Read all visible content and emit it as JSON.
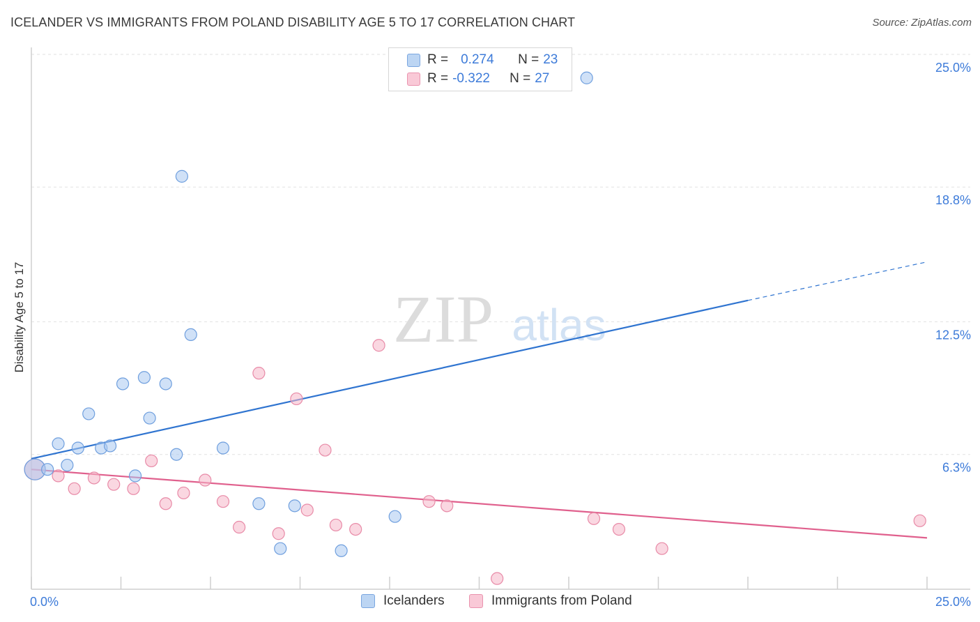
{
  "title": "ICELANDER VS IMMIGRANTS FROM POLAND DISABILITY AGE 5 TO 17 CORRELATION CHART",
  "source": "Source: ZipAtlas.com",
  "watermark": {
    "zip": "ZIP",
    "atlas": "atlas"
  },
  "legend": {
    "r_label": "R =",
    "n_label": "N =",
    "rows": [
      {
        "r": "0.274",
        "n": "23",
        "color": "#a9c8f0"
      },
      {
        "r": "-0.322",
        "n": "27",
        "color": "#f5b7c9"
      }
    ]
  },
  "chart_data": {
    "type": "scatter",
    "title": "ICELANDER VS IMMIGRANTS FROM POLAND DISABILITY AGE 5 TO 17 CORRELATION CHART",
    "xlabel": "",
    "ylabel": "Disability Age 5 to 17",
    "xlim": [
      0,
      25
    ],
    "ylim": [
      0,
      25.0
    ],
    "x_tick_labels": [
      "0.0%",
      "25.0%"
    ],
    "y_ticks": [
      6.3,
      12.5,
      18.8,
      25.0
    ],
    "y_tick_labels": [
      "6.3%",
      "12.5%",
      "18.8%",
      "25.0%"
    ],
    "grid": true,
    "series": [
      {
        "name": "Icelanders",
        "color": "#a9c8f0",
        "stroke": "#6f9fde",
        "line_color": "#2f74d0",
        "trend": {
          "x0": 0,
          "y0": 6.1,
          "x1": 20,
          "y1": 13.5,
          "dashed_to_x": 25,
          "dashed_to_y": 15.3
        },
        "points": [
          [
            0.1,
            5.6
          ],
          [
            0.45,
            5.6
          ],
          [
            0.75,
            6.8
          ],
          [
            1.0,
            5.8
          ],
          [
            1.3,
            6.6
          ],
          [
            1.6,
            8.2
          ],
          [
            1.95,
            6.6
          ],
          [
            2.2,
            6.7
          ],
          [
            2.55,
            9.6
          ],
          [
            2.9,
            5.3
          ],
          [
            3.15,
            9.9
          ],
          [
            3.3,
            8.0
          ],
          [
            3.75,
            9.6
          ],
          [
            4.05,
            6.3
          ],
          [
            4.2,
            19.3
          ],
          [
            4.45,
            11.9
          ],
          [
            5.35,
            6.6
          ],
          [
            6.35,
            4.0
          ],
          [
            6.95,
            1.9
          ],
          [
            7.35,
            3.9
          ],
          [
            8.65,
            1.8
          ],
          [
            10.15,
            3.4
          ],
          [
            15.5,
            23.9
          ]
        ]
      },
      {
        "name": "Immigrants from Poland",
        "color": "#f5b7c9",
        "stroke": "#e88aa7",
        "line_color": "#e0608d",
        "trend": {
          "x0": 0,
          "y0": 5.6,
          "x1": 25,
          "y1": 2.4
        },
        "points": [
          [
            0.1,
            5.6
          ],
          [
            0.75,
            5.3
          ],
          [
            1.2,
            4.7
          ],
          [
            1.75,
            5.2
          ],
          [
            2.3,
            4.9
          ],
          [
            2.85,
            4.7
          ],
          [
            3.35,
            6.0
          ],
          [
            3.75,
            4.0
          ],
          [
            4.25,
            4.5
          ],
          [
            4.85,
            5.1
          ],
          [
            5.35,
            4.1
          ],
          [
            5.8,
            2.9
          ],
          [
            6.35,
            10.1
          ],
          [
            6.9,
            2.6
          ],
          [
            7.4,
            8.9
          ],
          [
            7.7,
            3.7
          ],
          [
            8.2,
            6.5
          ],
          [
            8.5,
            3.0
          ],
          [
            9.05,
            2.8
          ],
          [
            9.7,
            11.4
          ],
          [
            11.1,
            4.1
          ],
          [
            11.6,
            3.9
          ],
          [
            13.0,
            0.5
          ],
          [
            15.7,
            3.3
          ],
          [
            16.4,
            2.8
          ],
          [
            17.6,
            1.9
          ],
          [
            24.8,
            3.2
          ]
        ]
      }
    ]
  }
}
